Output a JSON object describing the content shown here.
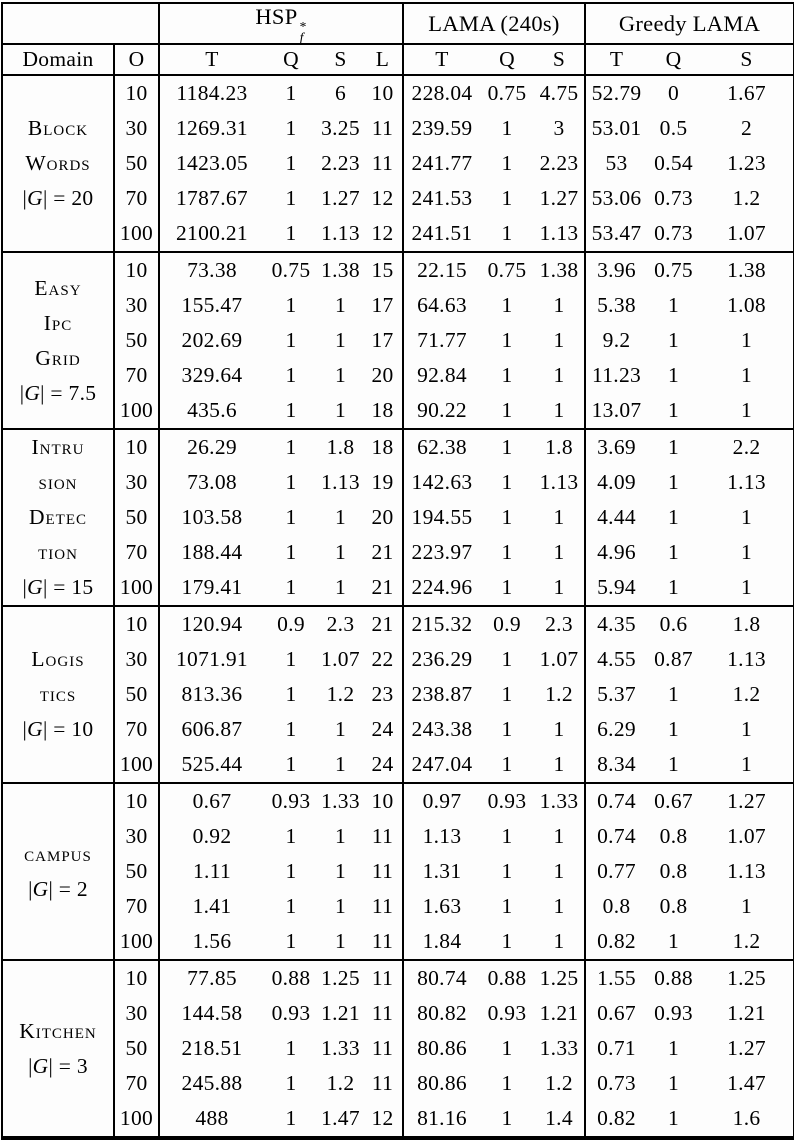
{
  "colors": {
    "page_background": "#fdfdfd",
    "rule_color": "#000000",
    "text_color": "#000000"
  },
  "table": {
    "domain_header": "Domain",
    "o_header": "O",
    "col_groups": [
      {
        "base": "HSP",
        "sup": "*",
        "sub": "f",
        "subheaders": [
          "T",
          "Q",
          "S",
          "L"
        ]
      },
      {
        "label": "LAMA (240s)",
        "subheaders": [
          "T",
          "Q",
          "S"
        ]
      },
      {
        "label": "Greedy LAMA",
        "subheaders": [
          "T",
          "Q",
          "S"
        ]
      }
    ],
    "groups": [
      {
        "name_lines": [
          "Block",
          "Words"
        ],
        "goal": "|G| = 20",
        "rows": [
          {
            "o": "10",
            "hsp": [
              "1184.23",
              "1",
              "6",
              "10"
            ],
            "lama": [
              "228.04",
              "0.75",
              "4.75"
            ],
            "greedy": [
              "52.79",
              "0",
              "1.67"
            ]
          },
          {
            "o": "30",
            "hsp": [
              "1269.31",
              "1",
              "3.25",
              "11"
            ],
            "lama": [
              "239.59",
              "1",
              "3"
            ],
            "greedy": [
              "53.01",
              "0.5",
              "2"
            ]
          },
          {
            "o": "50",
            "hsp": [
              "1423.05",
              "1",
              "2.23",
              "11"
            ],
            "lama": [
              "241.77",
              "1",
              "2.23"
            ],
            "greedy": [
              "53",
              "0.54",
              "1.23"
            ]
          },
          {
            "o": "70",
            "hsp": [
              "1787.67",
              "1",
              "1.27",
              "12"
            ],
            "lama": [
              "241.53",
              "1",
              "1.27"
            ],
            "greedy": [
              "53.06",
              "0.73",
              "1.2"
            ]
          },
          {
            "o": "100",
            "hsp": [
              "2100.21",
              "1",
              "1.13",
              "12"
            ],
            "lama": [
              "241.51",
              "1",
              "1.13"
            ],
            "greedy": [
              "53.47",
              "0.73",
              "1.07"
            ]
          }
        ]
      },
      {
        "name_lines": [
          "Easy",
          "Ipc",
          "Grid"
        ],
        "goal": "|G| = 7.5",
        "rows": [
          {
            "o": "10",
            "hsp": [
              "73.38",
              "0.75",
              "1.38",
              "15"
            ],
            "lama": [
              "22.15",
              "0.75",
              "1.38"
            ],
            "greedy": [
              "3.96",
              "0.75",
              "1.38"
            ]
          },
          {
            "o": "30",
            "hsp": [
              "155.47",
              "1",
              "1",
              "17"
            ],
            "lama": [
              "64.63",
              "1",
              "1"
            ],
            "greedy": [
              "5.38",
              "1",
              "1.08"
            ]
          },
          {
            "o": "50",
            "hsp": [
              "202.69",
              "1",
              "1",
              "17"
            ],
            "lama": [
              "71.77",
              "1",
              "1"
            ],
            "greedy": [
              "9.2",
              "1",
              "1"
            ]
          },
          {
            "o": "70",
            "hsp": [
              "329.64",
              "1",
              "1",
              "20"
            ],
            "lama": [
              "92.84",
              "1",
              "1"
            ],
            "greedy": [
              "11.23",
              "1",
              "1"
            ]
          },
          {
            "o": "100",
            "hsp": [
              "435.6",
              "1",
              "1",
              "18"
            ],
            "lama": [
              "90.22",
              "1",
              "1"
            ],
            "greedy": [
              "13.07",
              "1",
              "1"
            ]
          }
        ]
      },
      {
        "name_lines": [
          "Intru",
          "sion",
          "Detec",
          "tion"
        ],
        "goal": "|G| = 15",
        "rows": [
          {
            "o": "10",
            "hsp": [
              "26.29",
              "1",
              "1.8",
              "18"
            ],
            "lama": [
              "62.38",
              "1",
              "1.8"
            ],
            "greedy": [
              "3.69",
              "1",
              "2.2"
            ]
          },
          {
            "o": "30",
            "hsp": [
              "73.08",
              "1",
              "1.13",
              "19"
            ],
            "lama": [
              "142.63",
              "1",
              "1.13"
            ],
            "greedy": [
              "4.09",
              "1",
              "1.13"
            ]
          },
          {
            "o": "50",
            "hsp": [
              "103.58",
              "1",
              "1",
              "20"
            ],
            "lama": [
              "194.55",
              "1",
              "1"
            ],
            "greedy": [
              "4.44",
              "1",
              "1"
            ]
          },
          {
            "o": "70",
            "hsp": [
              "188.44",
              "1",
              "1",
              "21"
            ],
            "lama": [
              "223.97",
              "1",
              "1"
            ],
            "greedy": [
              "4.96",
              "1",
              "1"
            ]
          },
          {
            "o": "100",
            "hsp": [
              "179.41",
              "1",
              "1",
              "21"
            ],
            "lama": [
              "224.96",
              "1",
              "1"
            ],
            "greedy": [
              "5.94",
              "1",
              "1"
            ]
          }
        ]
      },
      {
        "name_lines": [
          "Logis",
          "tics"
        ],
        "goal": "|G| = 10",
        "rows": [
          {
            "o": "10",
            "hsp": [
              "120.94",
              "0.9",
              "2.3",
              "21"
            ],
            "lama": [
              "215.32",
              "0.9",
              "2.3"
            ],
            "greedy": [
              "4.35",
              "0.6",
              "1.8"
            ]
          },
          {
            "o": "30",
            "hsp": [
              "1071.91",
              "1",
              "1.07",
              "22"
            ],
            "lama": [
              "236.29",
              "1",
              "1.07"
            ],
            "greedy": [
              "4.55",
              "0.87",
              "1.13"
            ]
          },
          {
            "o": "50",
            "hsp": [
              "813.36",
              "1",
              "1.2",
              "23"
            ],
            "lama": [
              "238.87",
              "1",
              "1.2"
            ],
            "greedy": [
              "5.37",
              "1",
              "1.2"
            ]
          },
          {
            "o": "70",
            "hsp": [
              "606.87",
              "1",
              "1",
              "24"
            ],
            "lama": [
              "243.38",
              "1",
              "1"
            ],
            "greedy": [
              "6.29",
              "1",
              "1"
            ]
          },
          {
            "o": "100",
            "hsp": [
              "525.44",
              "1",
              "1",
              "24"
            ],
            "lama": [
              "247.04",
              "1",
              "1"
            ],
            "greedy": [
              "8.34",
              "1",
              "1"
            ]
          }
        ]
      },
      {
        "name_lines": [
          "campus"
        ],
        "goal": "|G| = 2",
        "rows": [
          {
            "o": "10",
            "hsp": [
              "0.67",
              "0.93",
              "1.33",
              "10"
            ],
            "lama": [
              "0.97",
              "0.93",
              "1.33"
            ],
            "greedy": [
              "0.74",
              "0.67",
              "1.27"
            ]
          },
          {
            "o": "30",
            "hsp": [
              "0.92",
              "1",
              "1",
              "11"
            ],
            "lama": [
              "1.13",
              "1",
              "1"
            ],
            "greedy": [
              "0.74",
              "0.8",
              "1.07"
            ]
          },
          {
            "o": "50",
            "hsp": [
              "1.11",
              "1",
              "1",
              "11"
            ],
            "lama": [
              "1.31",
              "1",
              "1"
            ],
            "greedy": [
              "0.77",
              "0.8",
              "1.13"
            ]
          },
          {
            "o": "70",
            "hsp": [
              "1.41",
              "1",
              "1",
              "11"
            ],
            "lama": [
              "1.63",
              "1",
              "1"
            ],
            "greedy": [
              "0.8",
              "0.8",
              "1"
            ]
          },
          {
            "o": "100",
            "hsp": [
              "1.56",
              "1",
              "1",
              "11"
            ],
            "lama": [
              "1.84",
              "1",
              "1"
            ],
            "greedy": [
              "0.82",
              "1",
              "1.2"
            ]
          }
        ]
      },
      {
        "name_lines": [
          "Kitchen"
        ],
        "goal": "|G| = 3",
        "rows": [
          {
            "o": "10",
            "hsp": [
              "77.85",
              "0.88",
              "1.25",
              "11"
            ],
            "lama": [
              "80.74",
              "0.88",
              "1.25"
            ],
            "greedy": [
              "1.55",
              "0.88",
              "1.25"
            ]
          },
          {
            "o": "30",
            "hsp": [
              "144.58",
              "0.93",
              "1.21",
              "11"
            ],
            "lama": [
              "80.82",
              "0.93",
              "1.21"
            ],
            "greedy": [
              "0.67",
              "0.93",
              "1.21"
            ]
          },
          {
            "o": "50",
            "hsp": [
              "218.51",
              "1",
              "1.33",
              "11"
            ],
            "lama": [
              "80.86",
              "1",
              "1.33"
            ],
            "greedy": [
              "0.71",
              "1",
              "1.27"
            ]
          },
          {
            "o": "70",
            "hsp": [
              "245.88",
              "1",
              "1.2",
              "11"
            ],
            "lama": [
              "80.86",
              "1",
              "1.2"
            ],
            "greedy": [
              "0.73",
              "1",
              "1.47"
            ]
          },
          {
            "o": "100",
            "hsp": [
              "488",
              "1",
              "1.47",
              "12"
            ],
            "lama": [
              "81.16",
              "1",
              "1.4"
            ],
            "greedy": [
              "0.82",
              "1",
              "1.6"
            ]
          }
        ]
      }
    ]
  }
}
